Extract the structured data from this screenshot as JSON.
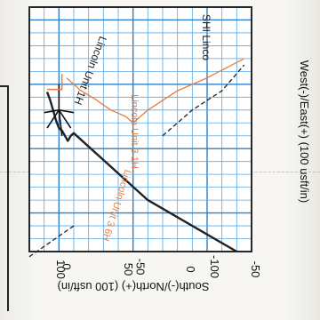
{
  "chart_data": {
    "type": "line",
    "orientation": "rotated-180",
    "xlabel": "West(-)/East(+) (100 usft/in)",
    "ylabel": "South(-)/North(+) (100 usft/in)",
    "xlim": [
      20,
      -130
    ],
    "ylim": [
      -60,
      130
    ],
    "x_ticks": [
      50,
      0,
      -50,
      -100
    ],
    "y_ticks": [
      100,
      50,
      0,
      -50
    ],
    "grid": true,
    "annotations": [
      {
        "text": "Lincoln Unit 1H",
        "color": "#222222"
      },
      {
        "text": "SHI Linco",
        "color": "#222222"
      },
      {
        "text": "Lincoln Unit 3 1H",
        "color": "#e87d3e"
      },
      {
        "text": "Lincoln Unit 3 6H",
        "color": "#e87d3e"
      }
    ],
    "series": [
      {
        "color": "#222222",
        "style": "solid",
        "x": [
          8,
          6,
          4,
          2,
          0,
          -2,
          -4,
          -6,
          -8,
          -10,
          -60,
          -120
        ],
        "y": [
          6,
          12,
          20,
          28,
          34,
          36,
          40,
          44,
          40,
          38,
          90,
          130
        ]
      },
      {
        "color": "#e87d3e",
        "style": "solid",
        "x": [
          -5,
          -15,
          -25,
          -35,
          -45,
          -50,
          -60,
          -80,
          -100,
          -125
        ],
        "y": [
          -5,
          5,
          12,
          20,
          25,
          30,
          20,
          5,
          -5,
          -20
        ]
      },
      {
        "color": "#222222",
        "style": "dashed",
        "x": [
          -70,
          -90,
          -110,
          -125
        ],
        "y": [
          40,
          20,
          5,
          -15
        ]
      },
      {
        "color": "#222222",
        "style": "dashed",
        "x": [
          -10,
          0,
          10,
          20
        ],
        "y": [
          110,
          118,
          126,
          134
        ]
      }
    ]
  }
}
